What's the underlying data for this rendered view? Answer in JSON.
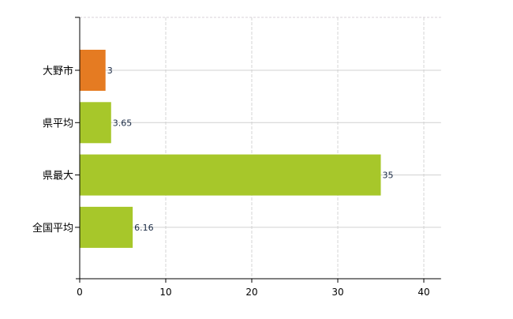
{
  "chart_data": {
    "type": "bar",
    "orientation": "horizontal",
    "categories": [
      "大野市",
      "県平均",
      "県最大",
      "全国平均"
    ],
    "values": [
      3,
      3.65,
      35,
      6.16
    ],
    "data_labels": [
      "3",
      "3.65",
      "35",
      "6.16"
    ],
    "colors": [
      "#e57b22",
      "#a7c72a",
      "#a7c72a",
      "#a7c72a"
    ],
    "xlim": [
      0,
      42
    ],
    "xticks": [
      0,
      10,
      20,
      30,
      40
    ],
    "xtick_labels": [
      "0",
      "10",
      "20",
      "30",
      "40"
    ],
    "grid": true,
    "title": "",
    "xlabel": "",
    "ylabel": ""
  }
}
